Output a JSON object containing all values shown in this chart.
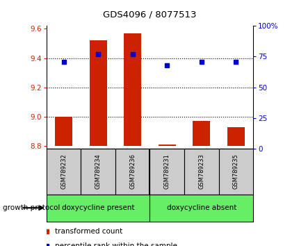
{
  "title": "GDS4096 / 8077513",
  "samples": [
    "GSM789232",
    "GSM789234",
    "GSM789236",
    "GSM789231",
    "GSM789233",
    "GSM789235"
  ],
  "bar_values": [
    9.0,
    9.52,
    9.57,
    8.81,
    8.97,
    8.93
  ],
  "bar_bottom": 8.8,
  "percentile_values": [
    9.375,
    9.425,
    9.425,
    9.35,
    9.375,
    9.375
  ],
  "bar_color": "#cc2200",
  "dot_color": "#0000cc",
  "ylim": [
    8.78,
    9.62
  ],
  "y2lim": [
    0,
    100
  ],
  "yticks": [
    8.8,
    9.0,
    9.2,
    9.4,
    9.6
  ],
  "y2ticks": [
    0,
    25,
    50,
    75,
    100
  ],
  "y2ticklabels": [
    "0",
    "25",
    "50",
    "75",
    "100%"
  ],
  "group1_label": "doxycycline present",
  "group2_label": "doxycycline absent",
  "group1_count": 3,
  "group2_count": 3,
  "protocol_label": "growth protocol",
  "legend_bar_label": "transformed count",
  "legend_dot_label": "percentile rank within the sample",
  "group_bg_color": "#66ee66",
  "sample_bg_color": "#cccccc",
  "bar_width": 0.5,
  "grid_yticks": [
    9.0,
    9.2,
    9.4
  ]
}
